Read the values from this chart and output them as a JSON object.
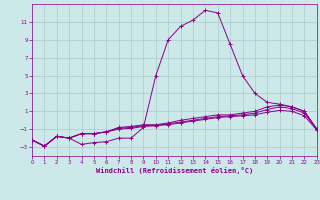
{
  "xlabel": "Windchill (Refroidissement éolien,°C)",
  "bg_color": "#cce8e8",
  "grid_color": "#aacccc",
  "line_color": "#8b008b",
  "xlim": [
    0,
    23
  ],
  "ylim": [
    -4,
    13
  ],
  "xticks": [
    0,
    1,
    2,
    3,
    4,
    5,
    6,
    7,
    8,
    9,
    10,
    11,
    12,
    13,
    14,
    15,
    16,
    17,
    18,
    19,
    20,
    21,
    22,
    23
  ],
  "yticks": [
    -3,
    -1,
    1,
    3,
    5,
    7,
    9,
    11
  ],
  "line1_x": [
    0,
    1,
    2,
    3,
    4,
    5,
    6,
    7,
    8,
    9,
    10,
    11,
    12,
    13,
    14,
    15,
    16,
    17,
    18,
    19,
    20,
    21,
    22,
    23
  ],
  "line1_y": [
    -2.2,
    -2.9,
    -1.8,
    -2.0,
    -2.7,
    -2.5,
    -2.4,
    -2.0,
    -2.0,
    -0.8,
    5.0,
    9.0,
    10.5,
    11.2,
    12.3,
    12.0,
    8.5,
    5.0,
    3.0,
    2.0,
    1.8,
    1.5,
    1.0,
    -1.0
  ],
  "line2_x": [
    0,
    1,
    2,
    3,
    4,
    5,
    6,
    7,
    8,
    9,
    10,
    11,
    12,
    13,
    14,
    15,
    16,
    17,
    18,
    19,
    20,
    21,
    22,
    23
  ],
  "line2_y": [
    -2.2,
    -2.9,
    -1.8,
    -2.0,
    -1.5,
    -1.5,
    -1.3,
    -0.8,
    -0.7,
    -0.5,
    -0.5,
    -0.3,
    0.0,
    0.2,
    0.4,
    0.6,
    0.6,
    0.8,
    1.0,
    1.5,
    1.7,
    1.5,
    1.0,
    -1.0
  ],
  "line3_x": [
    0,
    1,
    2,
    3,
    4,
    5,
    6,
    7,
    8,
    9,
    10,
    11,
    12,
    13,
    14,
    15,
    16,
    17,
    18,
    19,
    20,
    21,
    22,
    23
  ],
  "line3_y": [
    -2.2,
    -2.9,
    -1.8,
    -2.0,
    -1.5,
    -1.5,
    -1.3,
    -0.9,
    -0.8,
    -0.6,
    -0.6,
    -0.4,
    -0.2,
    0.0,
    0.2,
    0.4,
    0.5,
    0.6,
    0.8,
    1.2,
    1.5,
    1.3,
    0.8,
    -1.0
  ],
  "line4_x": [
    0,
    1,
    2,
    3,
    4,
    5,
    6,
    7,
    8,
    9,
    10,
    11,
    12,
    13,
    14,
    15,
    16,
    17,
    18,
    19,
    20,
    21,
    22,
    23
  ],
  "line4_y": [
    -2.2,
    -2.9,
    -1.8,
    -2.0,
    -1.5,
    -1.5,
    -1.3,
    -1.0,
    -0.9,
    -0.7,
    -0.6,
    -0.5,
    -0.3,
    -0.1,
    0.1,
    0.3,
    0.4,
    0.5,
    0.6,
    0.9,
    1.1,
    1.0,
    0.5,
    -1.1
  ]
}
